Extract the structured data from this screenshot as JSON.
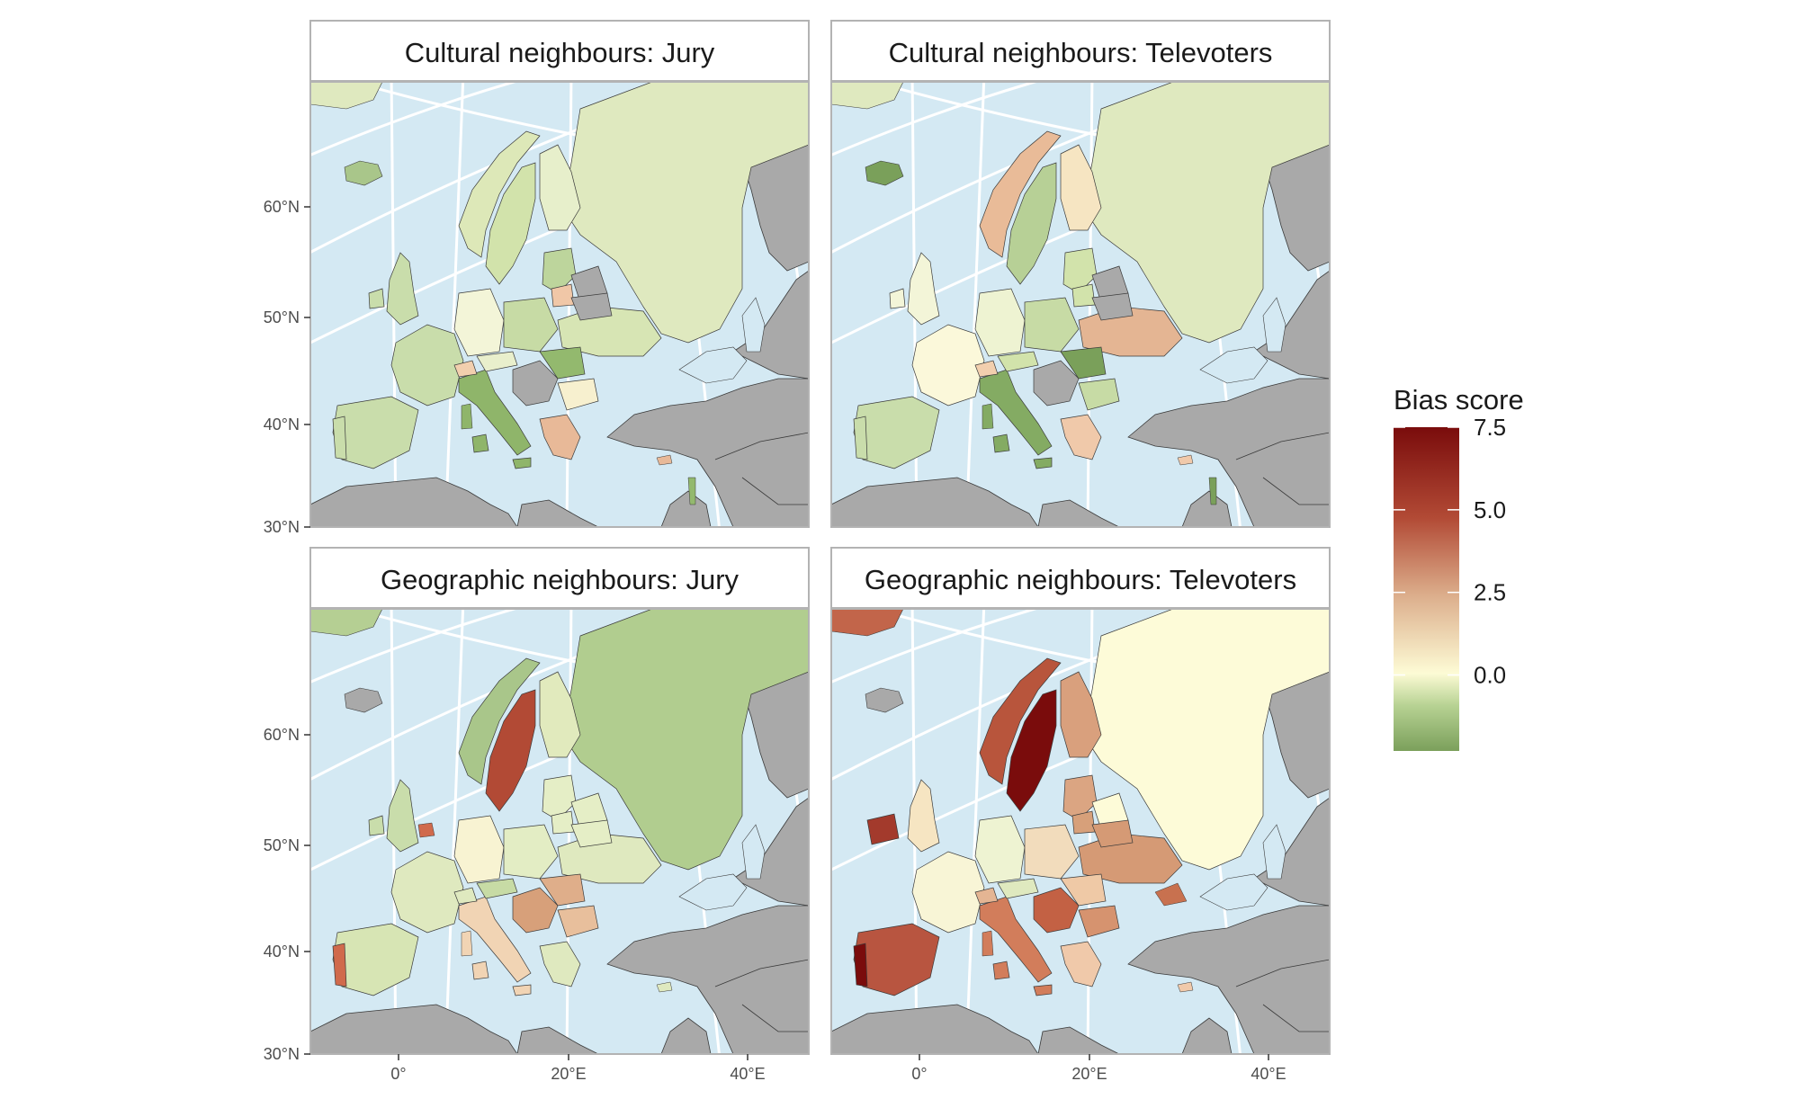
{
  "chart_data": {
    "type": "choropleth-facets",
    "facets": [
      {
        "title": "Cultural neighbours: Jury",
        "row": 0,
        "col": 0
      },
      {
        "title": "Cultural neighbours: Televoters",
        "row": 0,
        "col": 1
      },
      {
        "title": "Geographic neighbours: Jury",
        "row": 1,
        "col": 0
      },
      {
        "title": "Geographic neighbours: Televoters",
        "row": 1,
        "col": 1
      }
    ],
    "lat_ticks": [
      "30°N",
      "40°N",
      "50°N",
      "60°N"
    ],
    "lon_ticks": [
      "0°",
      "20°E",
      "40°E"
    ],
    "legend": {
      "title": "Bias score",
      "ticks": [
        {
          "value": 7.5,
          "label": "7.5"
        },
        {
          "value": 5.0,
          "label": "5.0"
        },
        {
          "value": 2.5,
          "label": "2.5"
        },
        {
          "value": 0.0,
          "label": "0.0"
        }
      ],
      "min": -2.3,
      "max": 7.5,
      "colors": [
        "#7ba05b",
        "#c2d9a0",
        "#fdfbd5",
        "#d7a07a",
        "#b24a35",
        "#7a0c0c"
      ]
    },
    "colors": {
      "sea": "#d4e9f3",
      "no_data": "#a9a9a9",
      "graticule": "#ffffff",
      "border": "#3a3a3a"
    }
  }
}
